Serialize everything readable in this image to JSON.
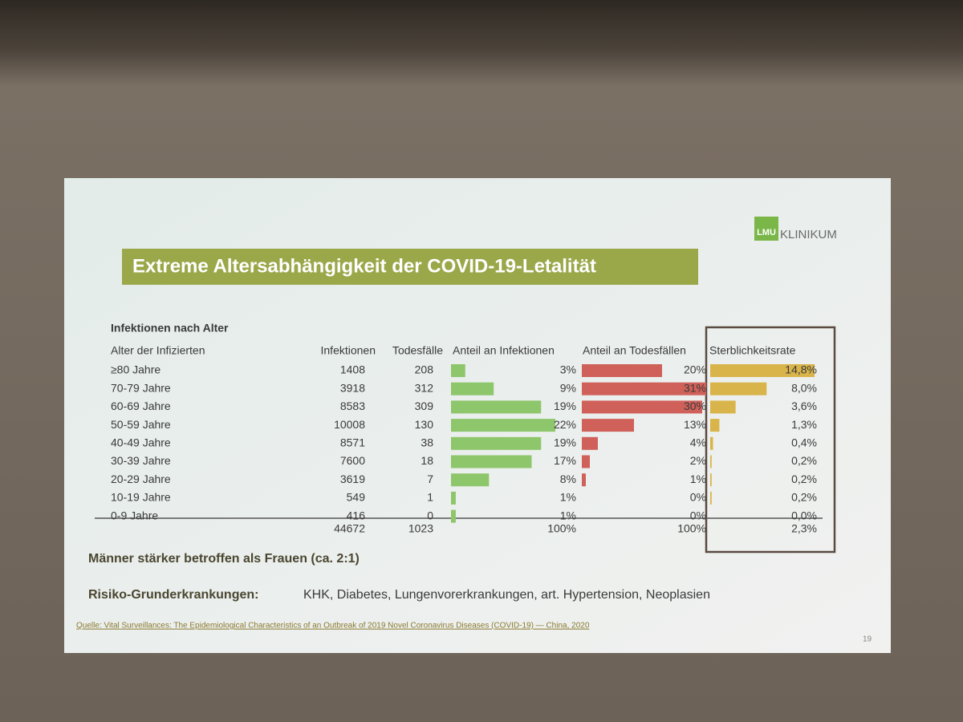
{
  "logo": {
    "mark": "LMU",
    "text": "KLINIKUM"
  },
  "title": "Extreme Altersabhängigkeit der COVID-19-Letalität",
  "table": {
    "caption": "Infektionen nach Alter",
    "headers": [
      "Alter der Infizierten",
      "Infektionen",
      "Todesfälle",
      "Anteil an Infektionen",
      "Anteil an Todesfällen",
      "Sterblichkeitsrate"
    ],
    "age_groups": [
      "≥80 Jahre",
      "70-79 Jahre",
      "60-69 Jahre",
      "50-59 Jahre",
      "40-49 Jahre",
      "30-39 Jahre",
      "20-29 Jahre",
      "10-19 Jahre",
      "0-9 Jahre"
    ],
    "infections": [
      1408,
      3918,
      8583,
      10008,
      8571,
      7600,
      3619,
      549,
      416
    ],
    "deaths": [
      208,
      312,
      309,
      130,
      38,
      18,
      7,
      1,
      0
    ],
    "infection_share": {
      "color": "#8dc66b",
      "values": [
        3,
        9,
        19,
        22,
        19,
        17,
        8,
        1,
        1
      ],
      "value_labels": [
        "3%",
        "9%",
        "19%",
        "22%",
        "19%",
        "17%",
        "8%",
        "1%",
        "1%"
      ]
    },
    "death_share": {
      "color": "#d0615a",
      "values": [
        20,
        31,
        30,
        13,
        4,
        2,
        1,
        0,
        0
      ],
      "value_labels": [
        "20%",
        "31%",
        "30%",
        "13%",
        "4%",
        "2%",
        "1%",
        "0%",
        "0%"
      ]
    },
    "fatality_rate": {
      "color": "#d9b44a",
      "values": [
        14.8,
        8.0,
        3.6,
        1.3,
        0.4,
        0.2,
        0.2,
        0.2,
        0.0
      ],
      "value_labels": [
        "14,8%",
        "8,0%",
        "3,6%",
        "1,3%",
        "0,4%",
        "0,2%",
        "0,2%",
        "0,2%",
        "0,0%"
      ]
    },
    "totals": {
      "infections": 44672,
      "deaths": 1023,
      "infection_share": "100%",
      "death_share": "100%",
      "fatality_rate": "2,3%"
    }
  },
  "note": "Männer stärker betroffen als Frauen (ca. 2:1)",
  "risk": {
    "label": "Risiko-Grunderkrankungen:",
    "text": "KHK, Diabetes, Lungenvorerkrankungen, art. Hypertension, Neoplasien"
  },
  "source": "Quelle: Vital Surveillances: The Epidemiological Characteristics of an Outbreak of 2019 Novel Coronavirus Diseases (COVID-19) — China, 2020",
  "page_number": "19"
}
